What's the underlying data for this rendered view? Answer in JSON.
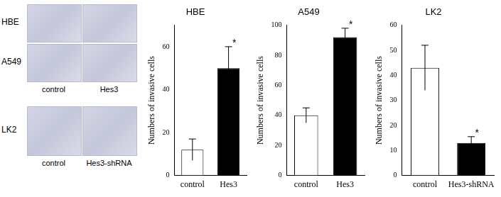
{
  "micrographs": {
    "rows": [
      {
        "label": "HBE",
        "columns": [
          "control",
          "Hes3"
        ],
        "column_labels_printed": false
      },
      {
        "label": "A549",
        "columns": [
          "control",
          "Hes3"
        ],
        "column_labels_printed": true
      },
      {
        "label": "LK2",
        "columns": [
          "control",
          "Hes3-shRNA"
        ],
        "column_labels_printed": true
      }
    ]
  },
  "chart_data": [
    {
      "type": "bar",
      "title": "HBE",
      "y_label": "Numbers of invasive cells",
      "categories": [
        "control",
        "Hes3"
      ],
      "values": [
        12,
        50
      ],
      "errors": [
        5,
        10
      ],
      "colors": [
        "#ffffff",
        "#000000"
      ],
      "ylim": [
        0,
        70
      ],
      "yticks": [
        0,
        20,
        40,
        60
      ],
      "grid": false,
      "annotations": [
        {
          "category": "Hes3",
          "text": "*"
        }
      ]
    },
    {
      "type": "bar",
      "title": "A549",
      "y_label": "Numbers of invasive cells",
      "categories": [
        "control",
        "Hes3"
      ],
      "values": [
        40,
        92
      ],
      "errors": [
        5,
        6
      ],
      "colors": [
        "#ffffff",
        "#000000"
      ],
      "ylim": [
        0,
        100
      ],
      "yticks": [
        0,
        20,
        40,
        60,
        80,
        100
      ],
      "grid": false,
      "annotations": [
        {
          "category": "Hes3",
          "text": "*"
        }
      ]
    },
    {
      "type": "bar",
      "title": "LK2",
      "y_label": "Numbers of invasive cells",
      "categories": [
        "control",
        "Hes3-shRNA"
      ],
      "values": [
        43,
        13
      ],
      "errors": [
        9,
        2.5
      ],
      "colors": [
        "#ffffff",
        "#000000"
      ],
      "ylim": [
        0,
        60
      ],
      "yticks": [
        0,
        10,
        20,
        30,
        40,
        50,
        60
      ],
      "grid": false,
      "annotations": [
        {
          "category": "Hes3-shRNA",
          "text": "*"
        }
      ]
    }
  ]
}
